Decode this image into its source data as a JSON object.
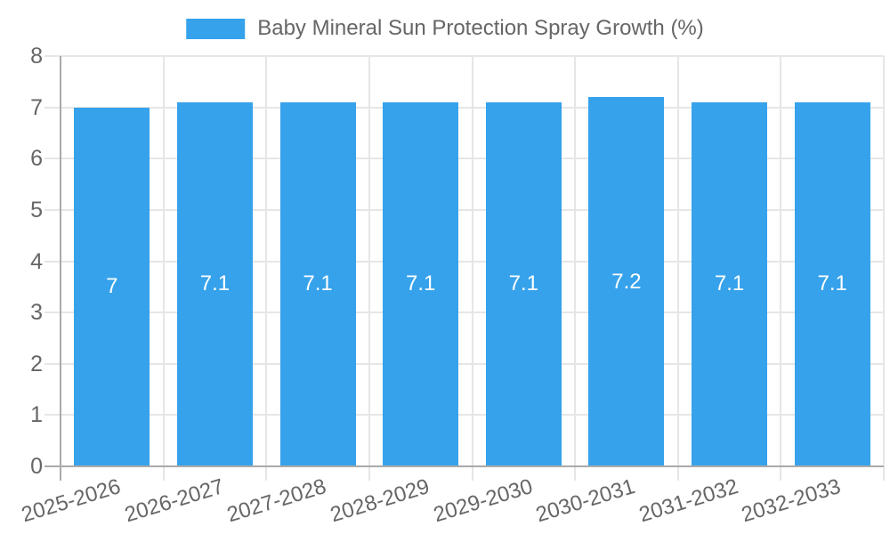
{
  "chart_data": {
    "type": "bar",
    "title": "Baby Mineral Sun Protection Spray Growth (%)",
    "legend_position": "top",
    "categories": [
      "2025-2026",
      "2026-2027",
      "2027-2028",
      "2028-2029",
      "2029-2030",
      "2030-2031",
      "2031-2032",
      "2032-2033"
    ],
    "values": [
      7,
      7.1,
      7.1,
      7.1,
      7.1,
      7.2,
      7.1,
      7.1
    ],
    "value_labels": [
      "7",
      "7.1",
      "7.1",
      "7.1",
      "7.1",
      "7.2",
      "7.1",
      "7.1"
    ],
    "xlabel": "",
    "ylabel": "",
    "ylim": [
      0,
      8
    ],
    "yticks": [
      "0",
      "1",
      "2",
      "3",
      "4",
      "5",
      "6",
      "7",
      "8"
    ],
    "grid": "on",
    "colors": {
      "bar": "#36a2eb",
      "grid": "#e6e6e6",
      "axis": "#aaaaaa",
      "tick_text": "#666666",
      "value_label_text": "#ffffff",
      "background": "#ffffff"
    }
  }
}
